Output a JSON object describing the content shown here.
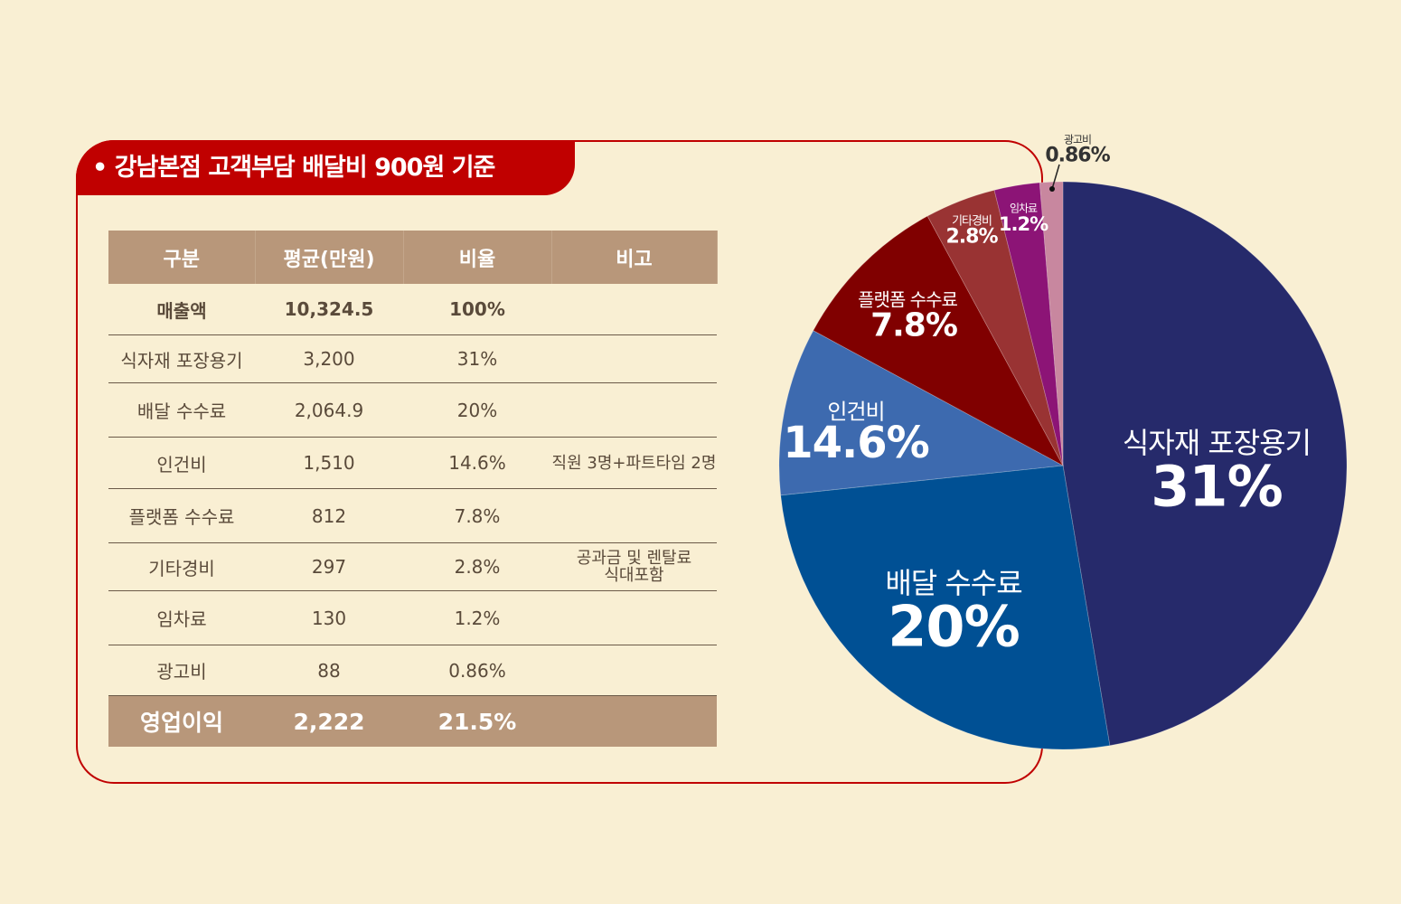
{
  "title": "• 강남본점 고객부담 배달비 900원 기준",
  "table": {
    "headers": [
      "구분",
      "평균(만원)",
      "비율",
      "비고"
    ],
    "rows": [
      [
        "매출액",
        "10,324.5",
        "100%",
        ""
      ],
      [
        "식자재 포장용기",
        "3,200",
        "31%",
        ""
      ],
      [
        "배달 수수료",
        "2,064.9",
        "20%",
        ""
      ],
      [
        "인건비",
        "1,510",
        "14.6%",
        "직원 3명+파트타임 2명"
      ],
      [
        "플랫폼 수수료",
        "812",
        "7.8%",
        ""
      ],
      [
        "기타경비",
        "297",
        "2.8%",
        "공과금 및 렌탈료\n식대포함"
      ],
      [
        "임차료",
        "130",
        "1.2%",
        ""
      ],
      [
        "광고비",
        "88",
        "0.86%",
        ""
      ]
    ],
    "total": [
      "영업이익",
      "2,222",
      "21.5%",
      ""
    ]
  },
  "chart_data": {
    "type": "pie",
    "title": "",
    "slices": [
      {
        "label": "식자재 포장용기",
        "value": 31,
        "value_label": "31%",
        "color": "#262a6b"
      },
      {
        "label": "배달 수수료",
        "value": 20,
        "value_label": "20%",
        "color": "#005094"
      },
      {
        "label": "인건비",
        "value": 14.6,
        "value_label": "14.6%",
        "color": "#3d6aaf"
      },
      {
        "label": "플랫폼 수수료",
        "value": 7.8,
        "value_label": "7.8%",
        "color": "#800000"
      },
      {
        "label": "기타경비",
        "value": 2.8,
        "value_label": "2.8%",
        "color": "#993333"
      },
      {
        "label": "임차료",
        "value": 1.2,
        "value_label": "1.2%",
        "color": "#8c1476"
      },
      {
        "label": "광고비",
        "value": 0.86,
        "value_label": "0.86%",
        "color": "#c8879f"
      }
    ]
  }
}
